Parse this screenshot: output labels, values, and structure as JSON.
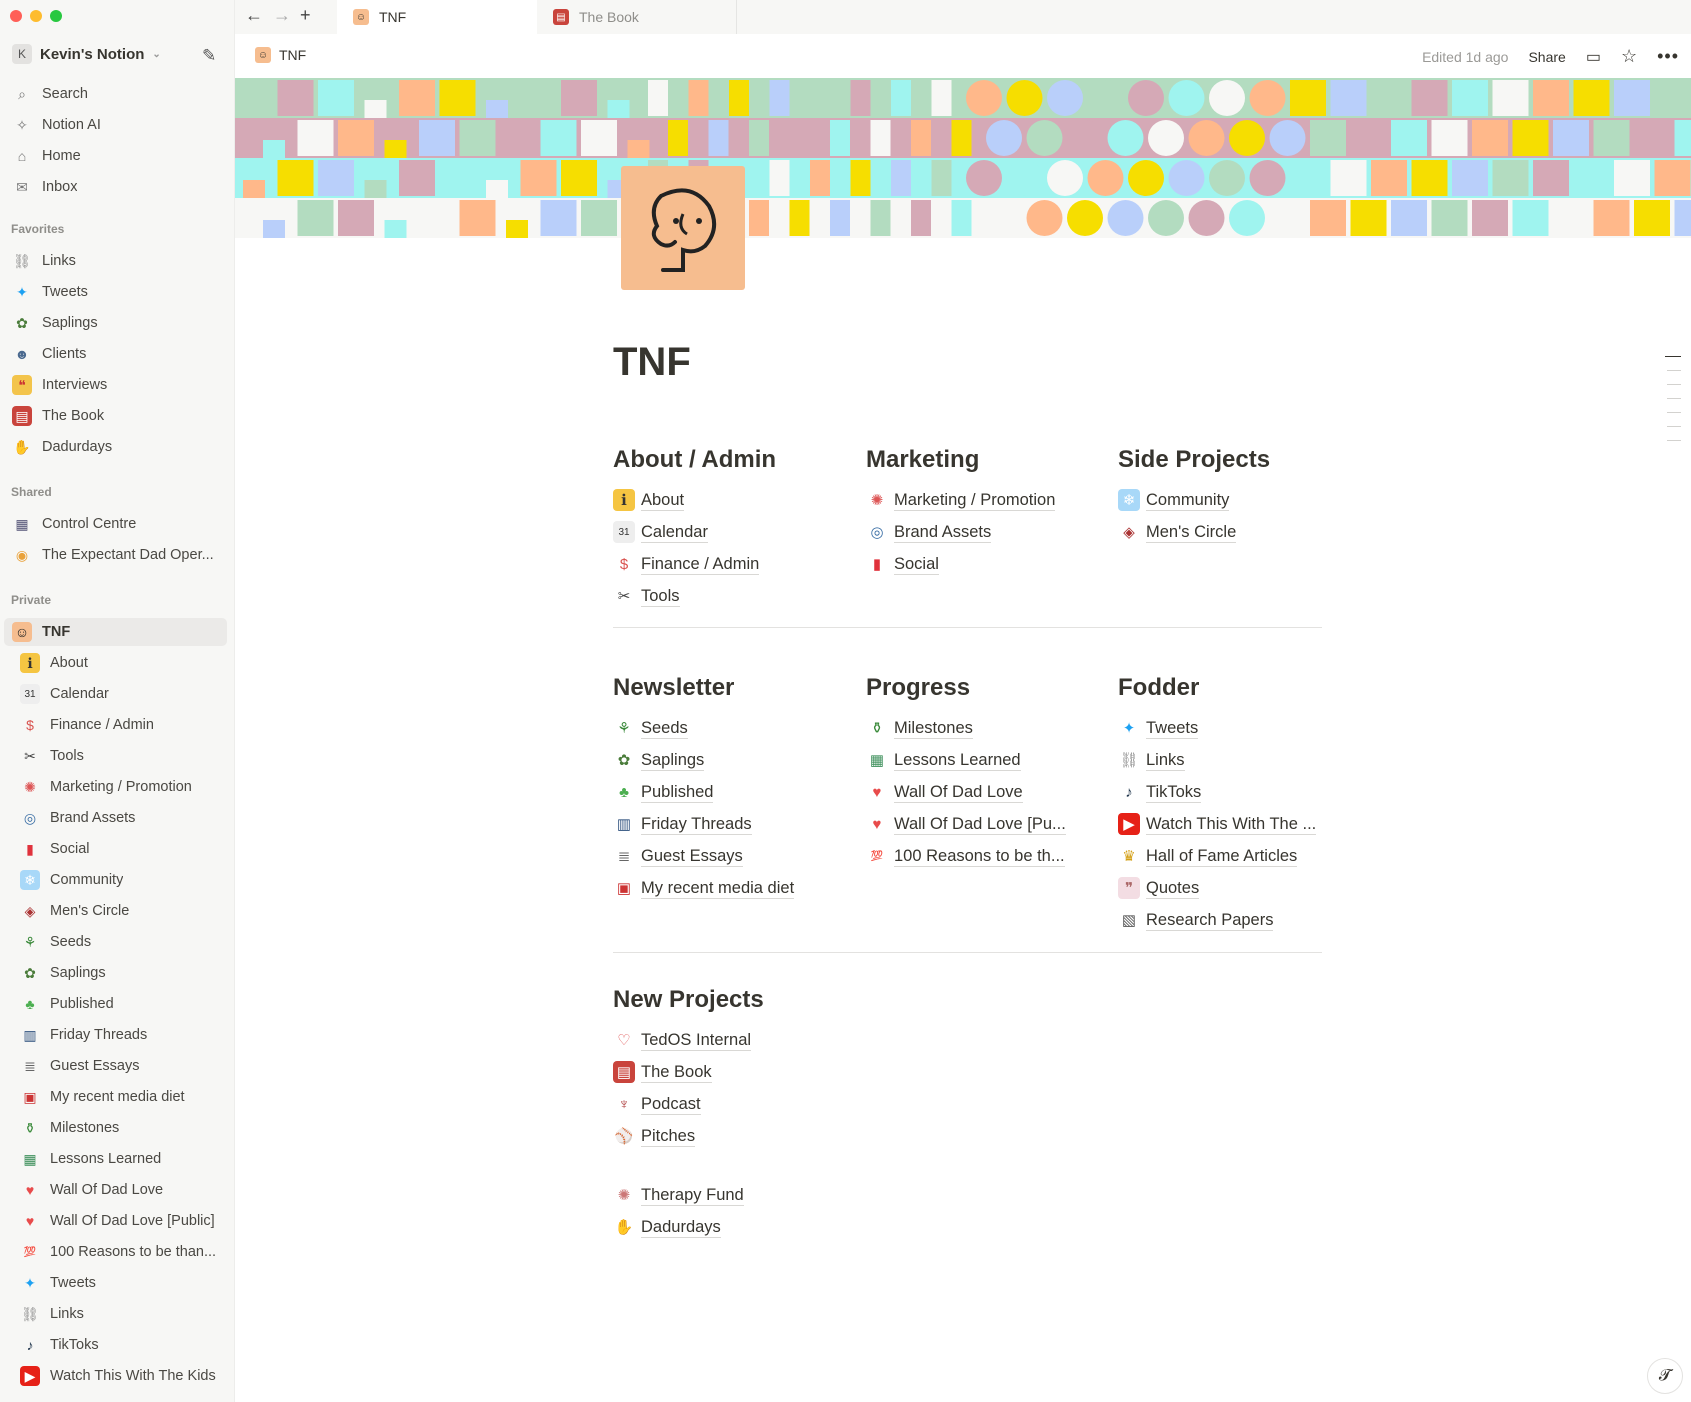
{
  "window": {
    "traffic_lights": [
      "#ff5f57",
      "#febc2e",
      "#28c840"
    ]
  },
  "tabs": [
    {
      "label": "TNF",
      "icon": "tnf-face-icon",
      "active": true
    },
    {
      "label": "The Book",
      "icon": "book-icon",
      "active": false
    }
  ],
  "workspace": {
    "initial": "K",
    "name": "Kevin's Notion"
  },
  "sidebar": {
    "top": [
      {
        "label": "Search",
        "icon": "search-icon"
      },
      {
        "label": "Notion AI",
        "icon": "notion-ai-icon"
      },
      {
        "label": "Home",
        "icon": "home-icon"
      },
      {
        "label": "Inbox",
        "icon": "inbox-icon"
      }
    ],
    "favorites_label": "Favorites",
    "favorites": [
      {
        "label": "Links",
        "icon": "link-icon"
      },
      {
        "label": "Tweets",
        "icon": "bird-icon"
      },
      {
        "label": "Saplings",
        "icon": "sapling-icon"
      },
      {
        "label": "Clients",
        "icon": "person-icon"
      },
      {
        "label": "Interviews",
        "icon": "speech-icon"
      },
      {
        "label": "The Book",
        "icon": "book-icon"
      },
      {
        "label": "Dadurdays",
        "icon": "handshake-icon"
      }
    ],
    "shared_label": "Shared",
    "shared": [
      {
        "label": "Control Centre",
        "icon": "control-icon"
      },
      {
        "label": "The Expectant Dad Oper...",
        "icon": "palette-icon"
      }
    ],
    "private_label": "Private",
    "private_root": {
      "label": "TNF",
      "icon": "tnf-face-icon"
    },
    "private": [
      {
        "label": "About",
        "icon": "info-icon"
      },
      {
        "label": "Calendar",
        "icon": "calendar-icon"
      },
      {
        "label": "Finance / Admin",
        "icon": "money-bag-icon"
      },
      {
        "label": "Tools",
        "icon": "tools-icon"
      },
      {
        "label": "Marketing / Promotion",
        "icon": "marketing-icon"
      },
      {
        "label": "Brand Assets",
        "icon": "globe-icon"
      },
      {
        "label": "Social",
        "icon": "bookmark-icon"
      },
      {
        "label": "Community",
        "icon": "community-icon"
      },
      {
        "label": "Men's Circle",
        "icon": "circle-icon"
      },
      {
        "label": "Seeds",
        "icon": "seedling-icon"
      },
      {
        "label": "Saplings",
        "icon": "sapling-icon"
      },
      {
        "label": "Published",
        "icon": "tree-icon"
      },
      {
        "label": "Friday Threads",
        "icon": "thread-icon"
      },
      {
        "label": "Guest Essays",
        "icon": "document-icon"
      },
      {
        "label": "My recent media diet",
        "icon": "popcorn-icon"
      },
      {
        "label": "Milestones",
        "icon": "champagne-icon"
      },
      {
        "label": "Lessons Learned",
        "icon": "chalkboard-icon"
      },
      {
        "label": "Wall Of Dad Love",
        "icon": "heart-pin-icon"
      },
      {
        "label": "Wall Of Dad Love [Public]",
        "icon": "heart-pin-icon"
      },
      {
        "label": "100 Reasons to be than...",
        "icon": "hundred-icon"
      },
      {
        "label": "Tweets",
        "icon": "bird-icon"
      },
      {
        "label": "Links",
        "icon": "link-icon"
      },
      {
        "label": "TikToks",
        "icon": "tiktok-icon"
      },
      {
        "label": "Watch This With The Kids",
        "icon": "youtube-icon"
      }
    ]
  },
  "header": {
    "breadcrumb": "TNF",
    "edited": "Edited 1d ago",
    "share": "Share"
  },
  "cover_colors": [
    "#b3dcc0",
    "#d5a9b6",
    "#9ff4ef",
    "#f7f7f5",
    "#ffb88a",
    "#f6de00",
    "#b9cffa"
  ],
  "page": {
    "title": "TNF",
    "sections": [
      {
        "heading": "About / Admin",
        "links": [
          {
            "label": "About",
            "icon": "info-icon"
          },
          {
            "label": "Calendar",
            "icon": "calendar-icon"
          },
          {
            "label": "Finance / Admin",
            "icon": "money-bag-icon"
          },
          {
            "label": "Tools",
            "icon": "tools-icon"
          }
        ]
      },
      {
        "heading": "Marketing",
        "links": [
          {
            "label": "Marketing / Promotion",
            "icon": "marketing-icon"
          },
          {
            "label": "Brand Assets",
            "icon": "globe-icon"
          },
          {
            "label": "Social",
            "icon": "bookmark-icon"
          }
        ]
      },
      {
        "heading": "Side Projects",
        "links": [
          {
            "label": "Community",
            "icon": "community-icon"
          },
          {
            "label": "Men's Circle",
            "icon": "circle-icon"
          }
        ]
      },
      {
        "heading": "Newsletter",
        "links": [
          {
            "label": "Seeds",
            "icon": "seedling-icon"
          },
          {
            "label": "Saplings",
            "icon": "sapling-icon"
          },
          {
            "label": "Published",
            "icon": "tree-icon"
          },
          {
            "label": "Friday Threads",
            "icon": "thread-icon"
          },
          {
            "label": "Guest Essays",
            "icon": "document-icon"
          },
          {
            "label": "My recent media diet",
            "icon": "popcorn-icon"
          }
        ]
      },
      {
        "heading": "Progress",
        "links": [
          {
            "label": "Milestones",
            "icon": "champagne-icon"
          },
          {
            "label": "Lessons Learned",
            "icon": "chalkboard-icon"
          },
          {
            "label": "Wall Of Dad Love",
            "icon": "heart-pin-icon"
          },
          {
            "label": "Wall Of Dad Love [Pu...",
            "icon": "heart-pin-icon"
          },
          {
            "label": "100 Reasons to be th...",
            "icon": "hundred-icon"
          }
        ]
      },
      {
        "heading": "Fodder",
        "links": [
          {
            "label": "Tweets",
            "icon": "bird-icon"
          },
          {
            "label": "Links",
            "icon": "link-icon"
          },
          {
            "label": "TikToks",
            "icon": "tiktok-icon"
          },
          {
            "label": "Watch This With The ...",
            "icon": "youtube-icon"
          },
          {
            "label": "Hall of Fame Articles",
            "icon": "trophy-icon"
          },
          {
            "label": "Quotes",
            "icon": "quote-icon"
          },
          {
            "label": "Research Papers",
            "icon": "research-icon"
          }
        ]
      },
      {
        "heading": "New Projects",
        "links": [
          {
            "label": "TedOS Internal",
            "icon": "heart-chat-icon"
          },
          {
            "label": "The Book",
            "icon": "book-icon"
          },
          {
            "label": "Podcast",
            "icon": "microphone-icon"
          },
          {
            "label": "Pitches",
            "icon": "pitch-icon"
          }
        ]
      }
    ],
    "extra_links": [
      {
        "label": "Therapy Fund",
        "icon": "brain-icon"
      },
      {
        "label": "Dadurdays",
        "icon": "handshake-icon"
      }
    ]
  }
}
